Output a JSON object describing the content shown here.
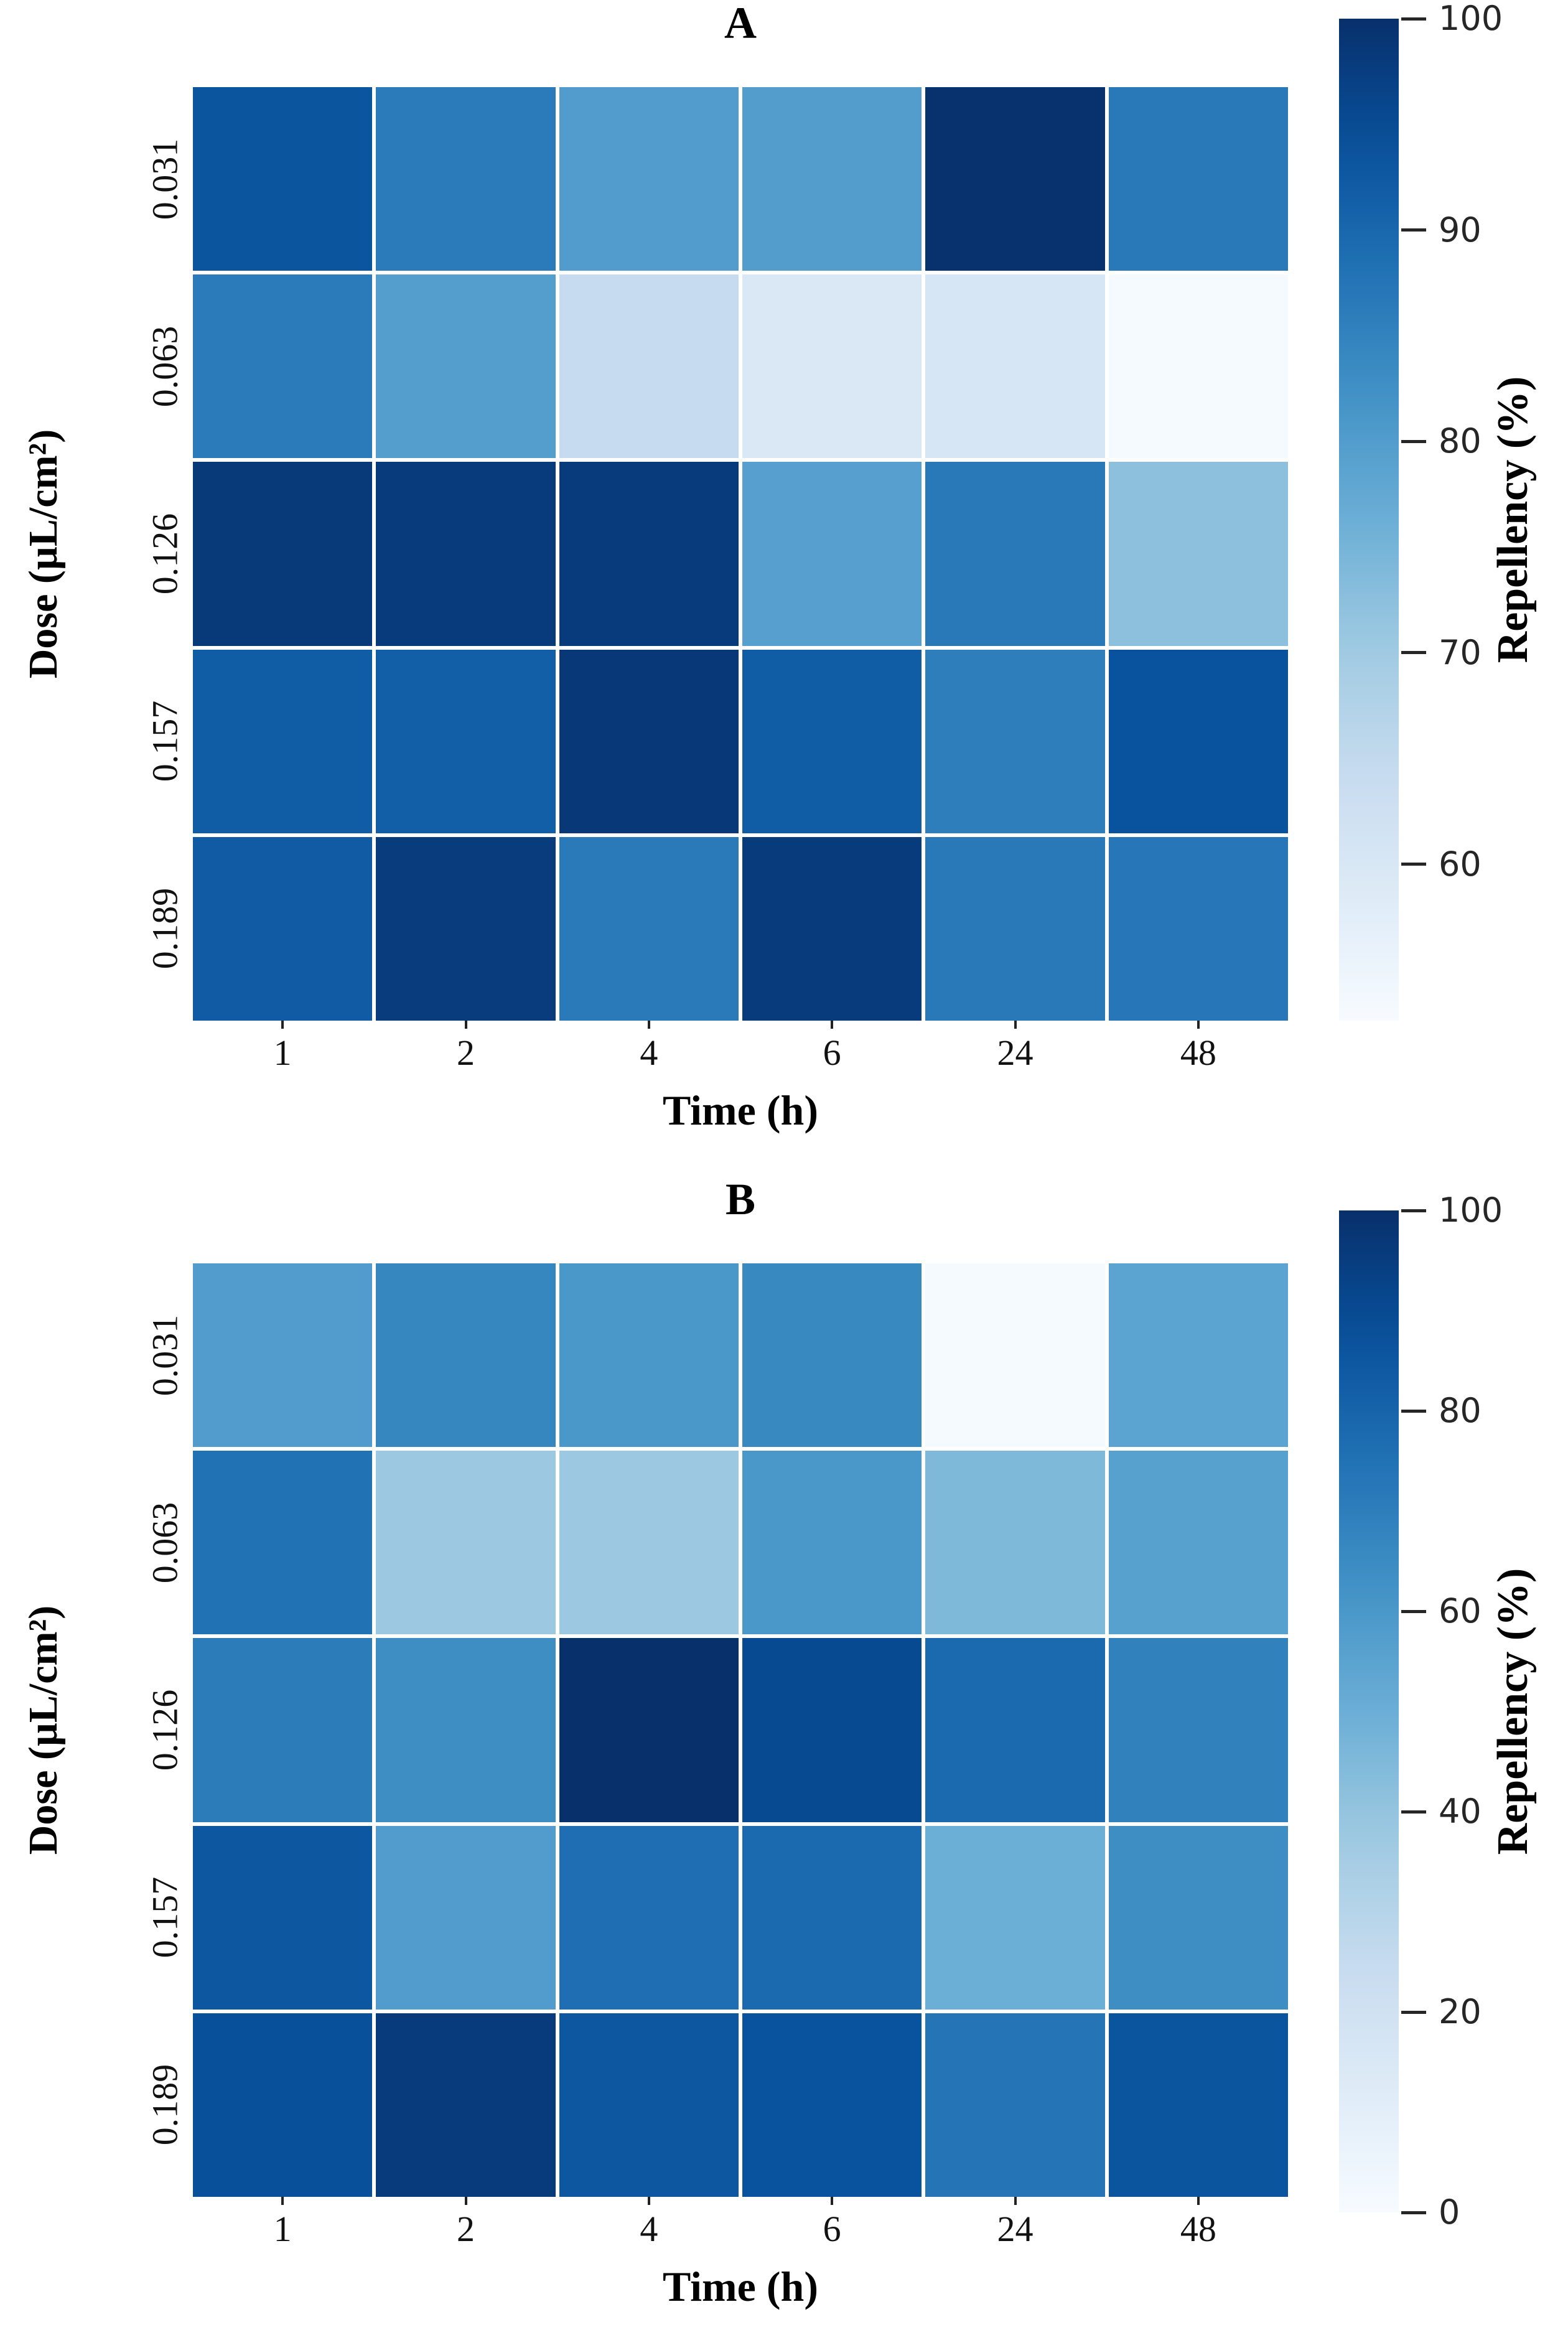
{
  "figure": {
    "background": "#ffffff",
    "description_note": "Two seaborn-style Blues heatmaps of repellency versus time and dose"
  },
  "colors": {
    "colormap_name": "Blues",
    "blues_anchors": [
      [
        0.0,
        247,
        251,
        255
      ],
      [
        0.125,
        222,
        235,
        247
      ],
      [
        0.25,
        198,
        219,
        239
      ],
      [
        0.375,
        158,
        202,
        225
      ],
      [
        0.5,
        107,
        174,
        214
      ],
      [
        0.625,
        66,
        146,
        198
      ],
      [
        0.75,
        33,
        113,
        181
      ],
      [
        0.875,
        8,
        81,
        156
      ],
      [
        1.0,
        8,
        48,
        107
      ]
    ],
    "grid_line": "#ffffff",
    "tick_text": "#111111",
    "colorbar_text": "#262626",
    "label_text": "#000000"
  },
  "chart_data": [
    {
      "type": "heatmap",
      "panel": "A",
      "title": "A",
      "xlabel": "Time (h)",
      "ylabel": "Dose (µL/cm²)",
      "x_categories": [
        "1",
        "2",
        "4",
        "6",
        "24",
        "48"
      ],
      "y_categories": [
        "0.031",
        "0.063",
        "0.126",
        "0.157",
        "0.189"
      ],
      "values": [
        [
          93.4,
          86.3,
          80.1,
          79.9,
          99.6,
          86.7
        ],
        [
          86.3,
          79.6,
          64.5,
          59.5,
          60.2,
          53.0
        ],
        [
          98.3,
          98.1,
          98.1,
          79.4,
          86.7,
          72.5
        ],
        [
          91.9,
          91.5,
          98.6,
          91.9,
          85.8,
          93.8
        ],
        [
          92.2,
          97.9,
          86.5,
          98.1,
          86.7,
          87.0
        ]
      ],
      "vmin": 52.6,
      "vmax": 100,
      "colorbar": {
        "label": "Repellency (%)",
        "ticks": [
          100,
          90,
          80,
          70,
          60
        ],
        "min": 52.6,
        "max": 100
      }
    },
    {
      "type": "heatmap",
      "panel": "B",
      "title": "B",
      "xlabel": "Time (h)",
      "ylabel": "Dose (µL/cm²)",
      "x_categories": [
        "1",
        "2",
        "4",
        "6",
        "24",
        "48"
      ],
      "y_categories": [
        "0.031",
        "0.063",
        "0.126",
        "0.157",
        "0.189"
      ],
      "values": [
        [
          58,
          67,
          60,
          66,
          1,
          55
        ],
        [
          75,
          38,
          38,
          60,
          45,
          56
        ],
        [
          71,
          64,
          100,
          90,
          78,
          69
        ],
        [
          85,
          58,
          76,
          78,
          50,
          64
        ],
        [
          88,
          96,
          85,
          87,
          74,
          86
        ]
      ],
      "vmin": 0,
      "vmax": 100,
      "colorbar": {
        "label": "Repellency (%)",
        "ticks": [
          100,
          80,
          60,
          40,
          20,
          0
        ],
        "min": 0,
        "max": 100
      }
    }
  ]
}
